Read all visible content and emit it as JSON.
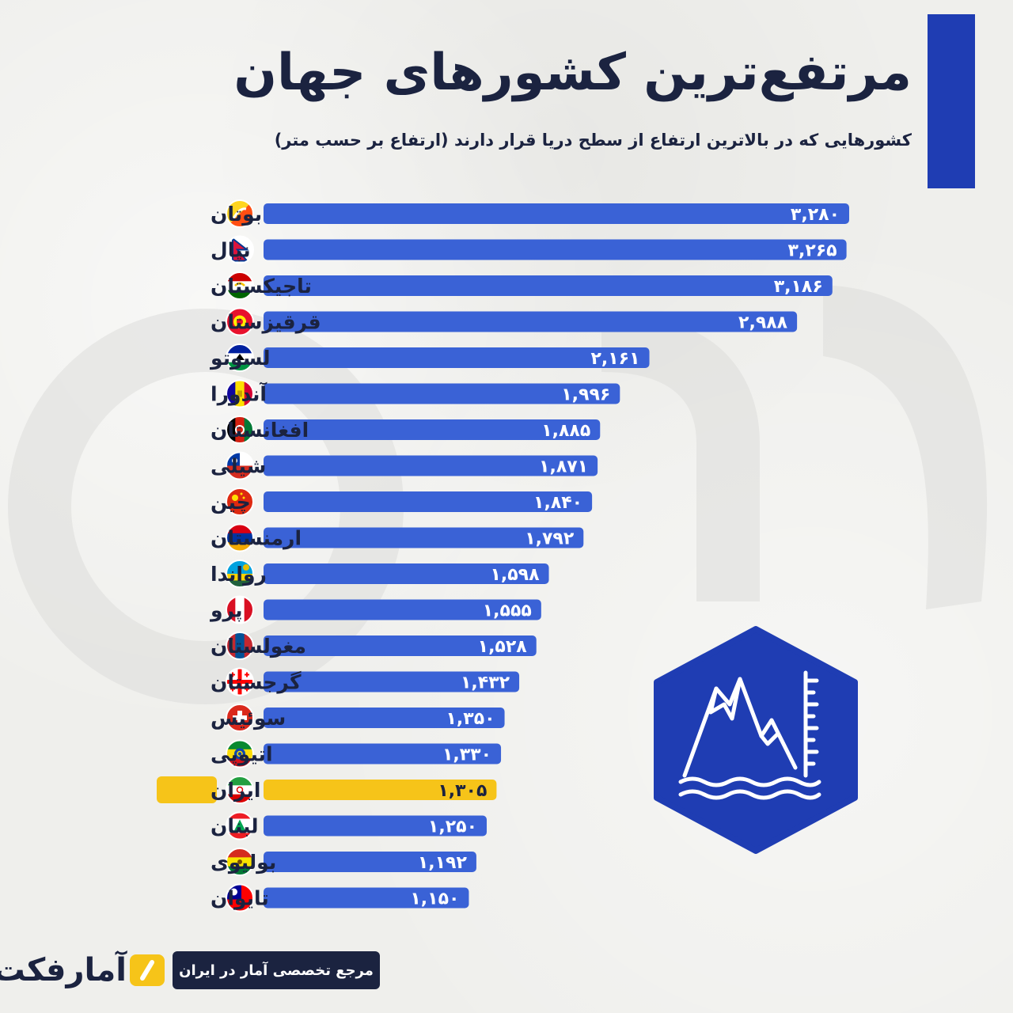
{
  "title": "مرتفع‌ترین کشورهای جهان",
  "subtitle": "کشورهایی که در بالاترین ارتفاع از سطح دریا قرار دارند (ارتفاع بر حسب متر)",
  "footer": {
    "tagline": "مرجع تخصصی آمار در ایران",
    "logo_text": "آمارفکت"
  },
  "colors": {
    "bar": "#3a62d6",
    "highlight": "#f6c419",
    "accent": "#1f3db3",
    "text": "#1b2340"
  },
  "icons": {
    "badge": "mountain-elevation-icon",
    "logo": "slash-logo-icon"
  },
  "chart_data": {
    "type": "bar",
    "orientation": "horizontal",
    "highlight": "ایران",
    "categories": [
      "بوتان",
      "نپال",
      "تاجیکستان",
      "قرقیزستان",
      "لسوتو",
      "آندورا",
      "افغانستان",
      "شیلی",
      "چین",
      "ارمنستان",
      "رواندا",
      "پرو",
      "مغولستان",
      "گرجستان",
      "سوئیس",
      "اتیوپی",
      "ایران",
      "لبنان",
      "بولیوی",
      "تایوان"
    ],
    "values": [
      3280,
      3265,
      3186,
      2988,
      2161,
      1996,
      1885,
      1871,
      1840,
      1792,
      1598,
      1555,
      1528,
      1432,
      1350,
      1330,
      1305,
      1250,
      1192,
      1150
    ],
    "value_labels": [
      "۳,۲۸۰",
      "۳,۲۶۵",
      "۳,۱۸۶",
      "۲,۹۸۸",
      "۲,۱۶۱",
      "۱,۹۹۶",
      "۱,۸۸۵",
      "۱,۸۷۱",
      "۱,۸۴۰",
      "۱,۷۹۲",
      "۱,۵۹۸",
      "۱,۵۵۵",
      "۱,۵۲۸",
      "۱,۴۳۲",
      "۱,۳۵۰",
      "۱,۳۳۰",
      "۱,۳۰۵",
      "۱,۲۵۰",
      "۱,۱۹۲",
      "۱,۱۵۰"
    ],
    "flags": [
      "bhutan-flag-icon",
      "nepal-flag-icon",
      "tajikistan-flag-icon",
      "kyrgyzstan-flag-icon",
      "lesotho-flag-icon",
      "andorra-flag-icon",
      "afghanistan-flag-icon",
      "chile-flag-icon",
      "china-flag-icon",
      "armenia-flag-icon",
      "rwanda-flag-icon",
      "peru-flag-icon",
      "mongolia-flag-icon",
      "georgia-flag-icon",
      "switzerland-flag-icon",
      "ethiopia-flag-icon",
      "iran-flag-icon",
      "lebanon-flag-icon",
      "bolivia-flag-icon",
      "taiwan-flag-icon"
    ],
    "xlabel": "",
    "ylabel": "",
    "xlim": [
      0,
      3280
    ],
    "grid": false,
    "legend": "none"
  }
}
